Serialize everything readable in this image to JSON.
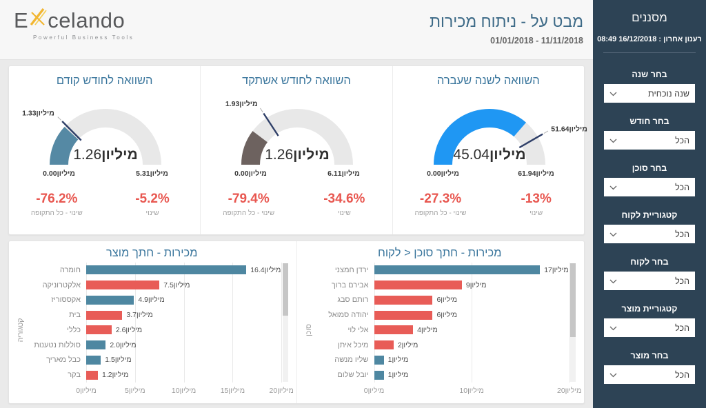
{
  "header": {
    "logo": {
      "text_e": "E",
      "text_rest": "celando",
      "tagline": "Powerful Business Tools"
    },
    "title": "מבט על - ניתוח מכירות",
    "date_range": "01/01/2018 - 11/11/2018"
  },
  "sidebar": {
    "title": "מסננים",
    "refresh_label": "רענון אחרון : 16/12/2018 08:49",
    "filters": [
      {
        "label": "בחר שנה",
        "value": "שנה נוכחית"
      },
      {
        "label": "בחר חודש",
        "value": "הכל"
      },
      {
        "label": "בחר סוכן",
        "value": "הכל"
      },
      {
        "label": "קטגוריית לקוח",
        "value": "הכל"
      },
      {
        "label": "בחר לקוח",
        "value": "הכל"
      },
      {
        "label": "קטגוריית מוצר",
        "value": "הכל"
      },
      {
        "label": "בחר מוצר",
        "value": "הכל"
      }
    ]
  },
  "unit": "מיליון",
  "gauges": [
    {
      "title": "השוואה לחודש קודם",
      "value": 1.26,
      "value_label": "1.26",
      "min": 0,
      "min_label": "0.00",
      "max": 5.31,
      "max_label": "5.31",
      "target": 1.33,
      "target_label": "1.33",
      "fill": "#5589a4",
      "change_total": "-76.2%",
      "change_total_caption": "שינוי - כל התקופה",
      "change": "-5.2%",
      "change_caption": "שינוי"
    },
    {
      "title": "השוואה לחודש אשתקד",
      "value": 1.26,
      "value_label": "1.26",
      "min": 0,
      "min_label": "0.00",
      "max": 6.11,
      "max_label": "6.11",
      "target": 1.93,
      "target_label": "1.93",
      "fill": "#6d625f",
      "change_total": "-79.4%",
      "change_total_caption": "שינוי - כל התקופה",
      "change": "-34.6%",
      "change_caption": "שינוי"
    },
    {
      "title": "השוואה לשנה שעברה",
      "value": 45.04,
      "value_label": "45.04",
      "min": 0,
      "min_label": "0.00",
      "max": 61.94,
      "max_label": "61.94",
      "target": 51.64,
      "target_label": "51.64",
      "fill": "#1f97f3",
      "change_total": "-27.3%",
      "change_total_caption": "שינוי - כל התקופה",
      "change": "-13%",
      "change_caption": "שינוי"
    }
  ],
  "bar_charts": [
    {
      "title": "מכירות - חתך מוצר",
      "ylabel": "קטגוריה",
      "axis_max": 20.8,
      "ticks": [
        {
          "v": 0,
          "label": "0"
        },
        {
          "v": 5,
          "label": "5"
        },
        {
          "v": 10,
          "label": "10"
        },
        {
          "v": 15,
          "label": "15"
        },
        {
          "v": 20,
          "label": "20"
        }
      ],
      "scroll_thumb": 0.44,
      "bars": [
        {
          "label": "חומרה",
          "value": 16.4,
          "value_label": "16.4",
          "color": "teal"
        },
        {
          "label": "אלקטרוניקה",
          "value": 7.5,
          "value_label": "7.5",
          "color": "red"
        },
        {
          "label": "אקססוריז",
          "value": 4.9,
          "value_label": "4.9",
          "color": "teal"
        },
        {
          "label": "בית",
          "value": 3.7,
          "value_label": "3.7",
          "color": "red"
        },
        {
          "label": "כללי",
          "value": 2.6,
          "value_label": "2.6",
          "color": "red"
        },
        {
          "label": "סוללות נטענות",
          "value": 2.0,
          "value_label": "2.0",
          "color": "teal"
        },
        {
          "label": "כבל מאריך",
          "value": 1.5,
          "value_label": "1.5",
          "color": "teal"
        },
        {
          "label": "בקר",
          "value": 1.2,
          "value_label": "1.2",
          "color": "red"
        }
      ]
    },
    {
      "title": "מכירות - חתך סוכן < לקוח",
      "ylabel": "סוכן",
      "axis_max": 20.8,
      "ticks": [
        {
          "v": 0,
          "label": "0"
        },
        {
          "v": 10,
          "label": "10"
        },
        {
          "v": 20,
          "label": "20"
        }
      ],
      "scroll_thumb": 0.62,
      "bars": [
        {
          "label": "ירדן חמצני",
          "value": 17,
          "value_label": "17",
          "color": "teal"
        },
        {
          "label": "אבירם ברוך",
          "value": 9,
          "value_label": "9",
          "color": "red"
        },
        {
          "label": "רותם סבג",
          "value": 6,
          "value_label": "6",
          "color": "red"
        },
        {
          "label": "יהודה סמואל",
          "value": 6,
          "value_label": "6",
          "color": "red"
        },
        {
          "label": "אלי לוי",
          "value": 4,
          "value_label": "4",
          "color": "red"
        },
        {
          "label": "מיכל איתן",
          "value": 2,
          "value_label": "2",
          "color": "red"
        },
        {
          "label": "שליו מנשה",
          "value": 1,
          "value_label": "1",
          "color": "teal"
        },
        {
          "label": "יובל שלום",
          "value": 1,
          "value_label": "1",
          "color": "teal"
        }
      ]
    }
  ],
  "colors": {
    "bright_blue": "#1f97f3",
    "steel_blue": "#5589a4",
    "taupe": "#6d625f",
    "bar_teal": "#4e87a1",
    "bar_red": "#e85c57",
    "negative_red": "#e85750",
    "title_blue": "#39759c",
    "sidebar_navy": "#2d4355",
    "marker_navy": "#2f3f68",
    "logo_yellow": "#f2b632"
  }
}
